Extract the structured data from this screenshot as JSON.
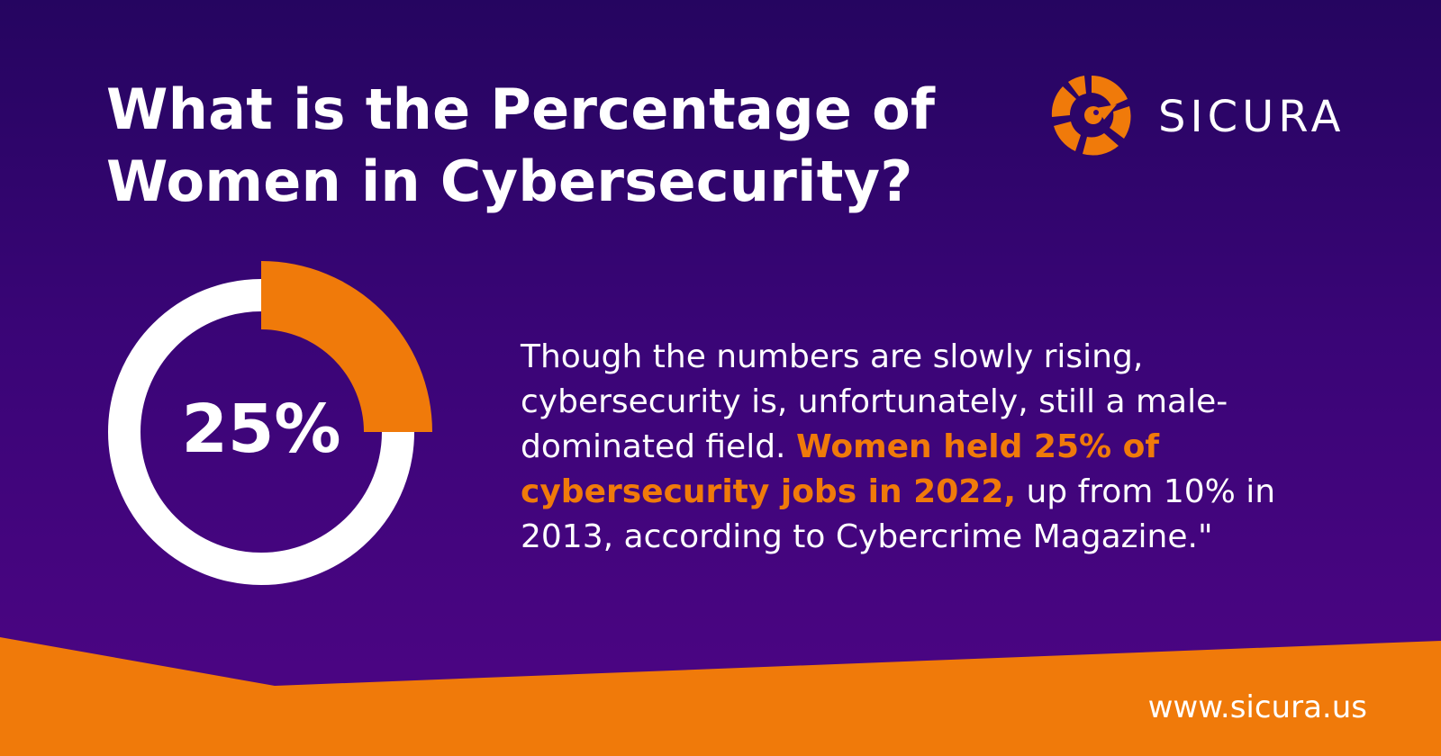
{
  "headline": {
    "line1": "What is the Percentage of",
    "line2": "Women in Cybersecurity?"
  },
  "brand": {
    "name": "SICURA",
    "icon": "sicura-parrot-logo-icon",
    "url": "www.sicura.us"
  },
  "stat": {
    "label": "25%",
    "fraction": 0.25
  },
  "body": {
    "part1": "Though the numbers are slowly rising, cybersecurity is, unfortunately, still a male-dominated field. ",
    "highlight": "Women held 25% of cybersecurity jobs in 2022,",
    "part2": " up from 10% in 2013, according to Cybercrime Magazine.\""
  },
  "colors": {
    "accent": "#f07a0a",
    "background": "#3a0577",
    "text": "#ffffff"
  }
}
